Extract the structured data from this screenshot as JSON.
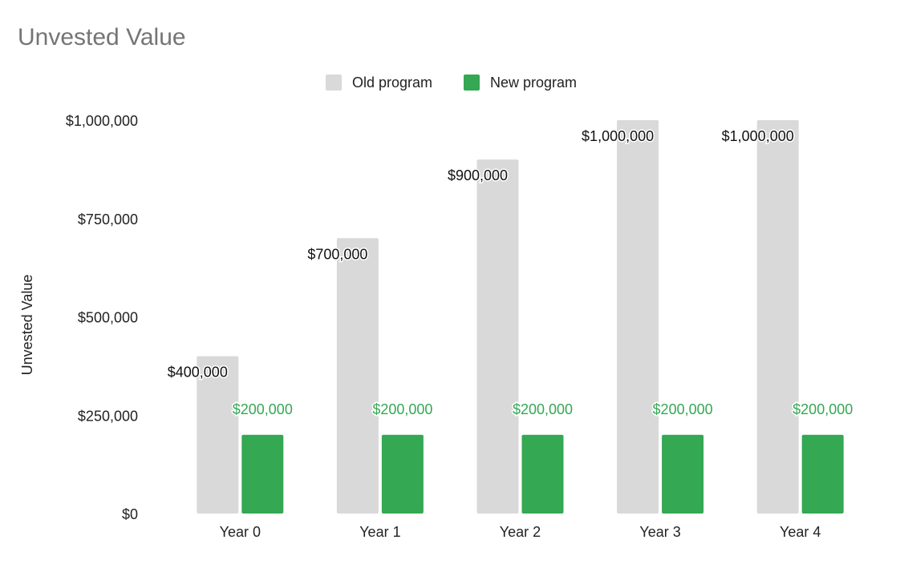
{
  "chart_data": {
    "type": "bar",
    "title": "Unvested Value",
    "ylabel": "Unvested Value",
    "xlabel": "",
    "categories": [
      "Year 0",
      "Year 1",
      "Year 2",
      "Year 3",
      "Year 4"
    ],
    "series": [
      {
        "name": "Old program",
        "color": "#d9d9d9",
        "label_color": "#111111",
        "values": [
          400000,
          700000,
          900000,
          1000000,
          1000000
        ],
        "labels": [
          "$400,000",
          "$700,000",
          "$900,000",
          "$1,000,000",
          "$1,000,000"
        ]
      },
      {
        "name": "New program",
        "color": "#34a853",
        "label_color": "#34a853",
        "values": [
          200000,
          200000,
          200000,
          200000,
          200000
        ],
        "labels": [
          "$200,000",
          "$200,000",
          "$200,000",
          "$200,000",
          "$200,000"
        ]
      }
    ],
    "ylim": [
      0,
      1000000
    ],
    "yticks": [
      0,
      250000,
      500000,
      750000,
      1000000
    ],
    "ytick_labels": [
      "$0",
      "$250,000",
      "$500,000",
      "$750,000",
      "$1,000,000"
    ],
    "grid": false,
    "legend_position": "top-center"
  }
}
